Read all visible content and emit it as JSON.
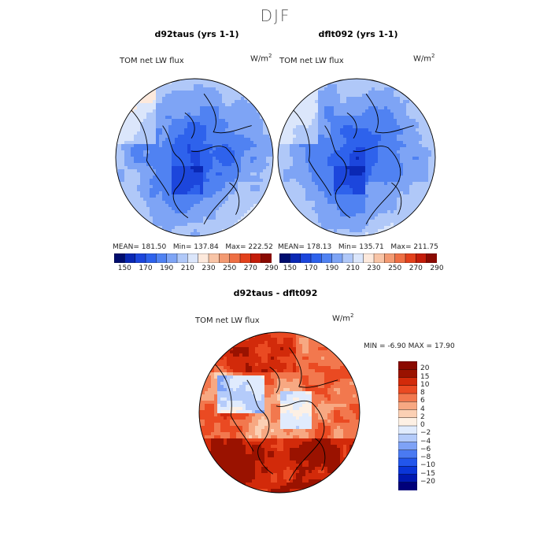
{
  "figure": {
    "title": "DJF"
  },
  "colors": {
    "abs_scale": [
      "#000d6e",
      "#0a28b4",
      "#1c46dc",
      "#2e62ec",
      "#5082f2",
      "#7ea4f5",
      "#b0c8f8",
      "#dbe6fb",
      "#fde9dc",
      "#f8c4a6",
      "#f39a72",
      "#ee6f44",
      "#e3411c",
      "#c41d0a",
      "#8a0a02"
    ],
    "diff_scale": [
      "#00007a",
      "#0018b0",
      "#0a35d8",
      "#2256ec",
      "#4a7af2",
      "#7ea2f6",
      "#b4cbfa",
      "#e0ebfd",
      "#fdf0e4",
      "#fbd0b4",
      "#f7a882",
      "#f2784e",
      "#ea4a22",
      "#d22a0a",
      "#9a1200"
    ]
  },
  "panels": [
    {
      "title": "d92taus (yrs 1-1)",
      "subtitle": "TOM net LW flux",
      "units_base": "W/m",
      "units_sup": "2",
      "stats": {
        "mean_label": "MEAN=",
        "mean": "181.50",
        "min_label": "Min=",
        "min": "137.84",
        "max_label": "Max=",
        "max": "222.52"
      }
    },
    {
      "title": "dflt092 (yrs 1-1)",
      "subtitle": "TOM net LW flux",
      "units_base": "W/m",
      "units_sup": "2",
      "stats": {
        "mean_label": "MEAN=",
        "mean": "178.13",
        "min_label": "Min=",
        "min": "135.71",
        "max_label": "Max=",
        "max": "211.75"
      }
    }
  ],
  "diff_panel": {
    "title": "d92taus - dflt092",
    "subtitle": "TOM net LW flux",
    "units_base": "W/m",
    "units_sup": "2",
    "stats": {
      "min_label": "MIN =",
      "min": "-6.90",
      "max_label": "MAX =",
      "max": "17.90"
    }
  },
  "chart_data": [
    {
      "type": "heatmap",
      "projection": "north polar stereographic",
      "title": "d92taus (yrs 1-1)",
      "subtitle": "TOM net LW flux",
      "units": "W/m2",
      "mean": 181.5,
      "min": 137.84,
      "max": 222.52,
      "colorbar": {
        "orientation": "horizontal",
        "levels": [
          150,
          160,
          170,
          180,
          190,
          200,
          210,
          220,
          230,
          240,
          250,
          260,
          270,
          280,
          290
        ],
        "tick_labels": [
          "150",
          "170",
          "190",
          "210",
          "230",
          "250",
          "270",
          "290"
        ]
      }
    },
    {
      "type": "heatmap",
      "projection": "north polar stereographic",
      "title": "dflt092 (yrs 1-1)",
      "subtitle": "TOM net LW flux",
      "units": "W/m2",
      "mean": 178.13,
      "min": 135.71,
      "max": 211.75,
      "colorbar": {
        "orientation": "horizontal",
        "levels": [
          150,
          160,
          170,
          180,
          190,
          200,
          210,
          220,
          230,
          240,
          250,
          260,
          270,
          280,
          290
        ],
        "tick_labels": [
          "150",
          "170",
          "190",
          "210",
          "230",
          "250",
          "270",
          "290"
        ]
      }
    },
    {
      "type": "heatmap",
      "projection": "north polar stereographic",
      "title": "d92taus - dflt092",
      "subtitle": "TOM net LW flux",
      "units": "W/m2",
      "min": -6.9,
      "max": 17.9,
      "colorbar": {
        "orientation": "vertical",
        "tick_labels": [
          "20",
          "15",
          "10",
          "8",
          "6",
          "4",
          "2",
          "0",
          "-2",
          "-4",
          "-6",
          "-8",
          "-10",
          "-15",
          "-20"
        ]
      }
    }
  ]
}
